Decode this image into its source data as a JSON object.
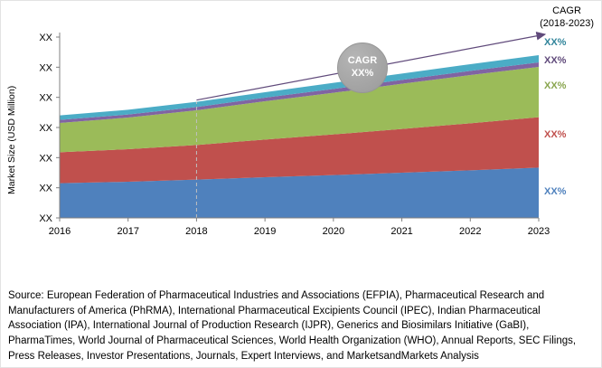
{
  "cagr_header": {
    "line1": "CAGR",
    "line2": "(2018-2023)"
  },
  "cagr_bubble": {
    "line1": "CAGR",
    "line2": "XX%"
  },
  "y_axis_title": "Market Size (USD Million)",
  "side_labels": [
    {
      "text": "XX%",
      "color": "#31859B"
    },
    {
      "text": "XX%",
      "color": "#604A7B"
    },
    {
      "text": "XX%",
      "color": "#89A54E"
    },
    {
      "text": "XX%",
      "color": "#C0504D"
    },
    {
      "text": "XX%",
      "color": "#4F81BD"
    }
  ],
  "source_text": "Source: European Federation of Pharmaceutical Industries and Associations (EFPIA), Pharmaceutical Research and Manufacturers of America (PhRMA), International Pharmaceutical Excipients Council (IPEC), Indian Pharmaceutical Association (IPA), International Journal of Production Research (IJPR), Generics and Biosimilars Initiative (GaBI), PharmaTimes, World Journal of Pharmaceutical Sciences, World Health Organization (WHO), Annual Reports, SEC Filings, Press Releases, Investor Presentations, Journals, Expert Interviews, and MarketsandMarkets Analysis",
  "chart_data": {
    "type": "area",
    "stacked": true,
    "title": "",
    "xlabel": "",
    "ylabel": "Market Size (USD Million)",
    "grid": false,
    "legend_position": "none",
    "x": [
      2016,
      2017,
      2018,
      2019,
      2020,
      2021,
      2022,
      2023
    ],
    "x_tick_labels": [
      "2016",
      "2017",
      "2018",
      "2019",
      "2020",
      "2021",
      "2022",
      "2023"
    ],
    "y_tick_labels": [
      "XX",
      "XX",
      "XX",
      "XX",
      "XX",
      "XX",
      "XX"
    ],
    "ylim": [
      0,
      6
    ],
    "series": [
      {
        "name": "segment-blue",
        "color": "#4F81BD",
        "values": [
          1.15,
          1.2,
          1.27,
          1.35,
          1.42,
          1.5,
          1.58,
          1.67
        ]
      },
      {
        "name": "segment-red",
        "color": "#C0504D",
        "values": [
          1.03,
          1.08,
          1.15,
          1.25,
          1.35,
          1.45,
          1.56,
          1.67
        ]
      },
      {
        "name": "segment-green",
        "color": "#9BBB59",
        "values": [
          0.97,
          1.05,
          1.15,
          1.27,
          1.38,
          1.5,
          1.6,
          1.67
        ]
      },
      {
        "name": "segment-purple",
        "color": "#8064A2",
        "values": [
          0.1,
          0.1,
          0.11,
          0.12,
          0.13,
          0.13,
          0.14,
          0.15
        ]
      },
      {
        "name": "segment-teal",
        "color": "#4BACC6",
        "values": [
          0.15,
          0.16,
          0.17,
          0.18,
          0.2,
          0.21,
          0.22,
          0.24
        ]
      }
    ],
    "annotations": {
      "dashed_line_x": 2018,
      "trend_arrow": {
        "from_x": 2018,
        "to_x": 2023,
        "color": "#604A7B"
      },
      "bubble": {
        "label": "CAGR",
        "value": "XX%"
      }
    }
  }
}
